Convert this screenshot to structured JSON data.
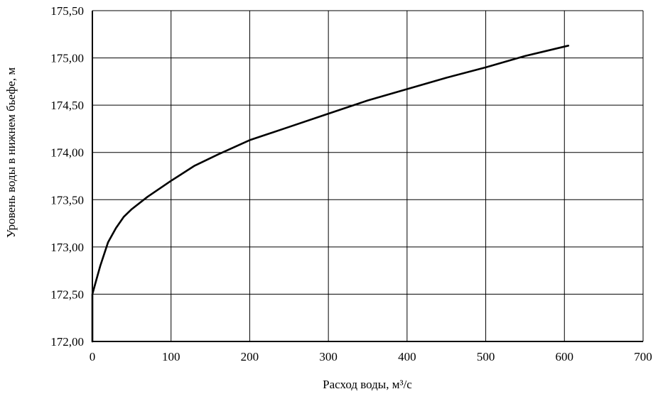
{
  "chart_data": {
    "type": "line",
    "title": "",
    "xlabel": "Расход воды, м³/с",
    "ylabel": "Уровень воды в нижнем бьефе, м",
    "xlim": [
      0,
      700
    ],
    "ylim": [
      172.0,
      175.5
    ],
    "x_ticks": [
      0,
      100,
      200,
      300,
      400,
      500,
      600,
      700
    ],
    "y_ticks": [
      172.0,
      172.5,
      173.0,
      173.5,
      174.0,
      174.5,
      175.0,
      175.5
    ],
    "x_tick_labels": [
      "0",
      "100",
      "200",
      "300",
      "400",
      "500",
      "600",
      "700"
    ],
    "y_tick_labels": [
      "172,00",
      "172,50",
      "173,00",
      "173,50",
      "174,00",
      "174,50",
      "175,00",
      "175,50"
    ],
    "grid": true,
    "series": [
      {
        "color": "#000000",
        "x": [
          0,
          0,
          5,
          10,
          20,
          30,
          40,
          50,
          70,
          100,
          130,
          160,
          200,
          250,
          300,
          350,
          400,
          450,
          500,
          550,
          605
        ],
        "y": [
          172.0,
          172.5,
          172.65,
          172.8,
          173.05,
          173.2,
          173.32,
          173.4,
          173.53,
          173.7,
          173.86,
          173.98,
          174.13,
          174.27,
          174.41,
          174.55,
          174.67,
          174.79,
          174.9,
          175.02,
          175.13
        ]
      }
    ]
  }
}
